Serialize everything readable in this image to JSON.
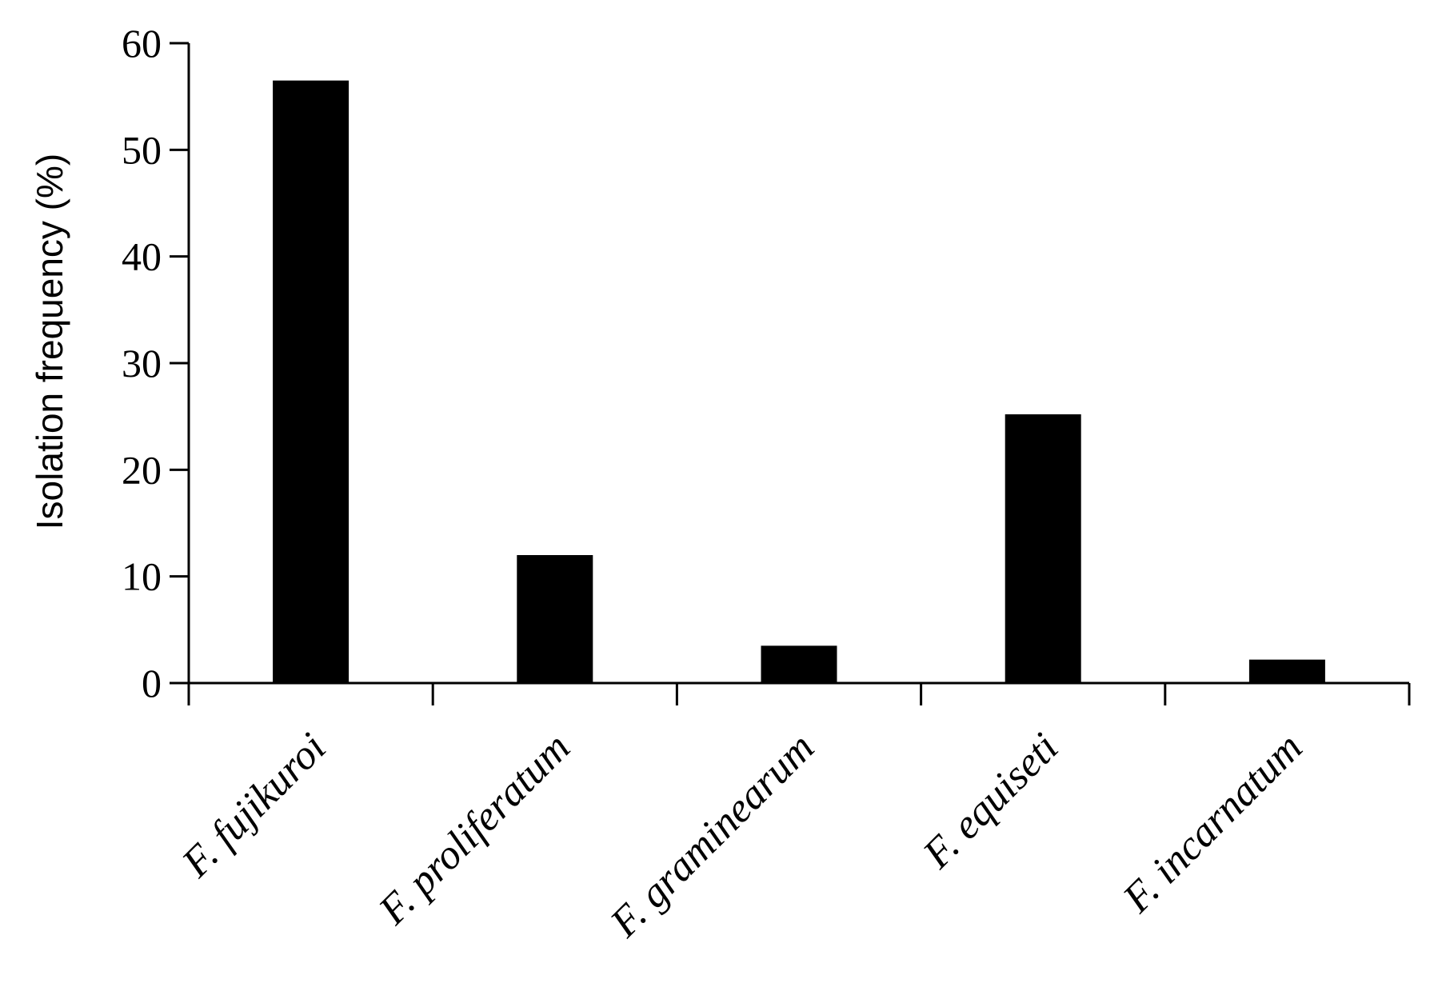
{
  "chart_data": {
    "type": "bar",
    "categories": [
      "F. fujikuroi",
      "F. proliferatum",
      "F. graminearum",
      "F. equiseti",
      "F. incarnatum"
    ],
    "values": [
      56.5,
      12.0,
      3.5,
      25.2,
      2.2
    ],
    "title": "",
    "xlabel": "",
    "ylabel": "Isolation frequency (%)",
    "ylim": [
      0,
      60
    ],
    "yticks": [
      0,
      10,
      20,
      30,
      40,
      50,
      60
    ],
    "ytick_labels": [
      "0",
      "10",
      "20",
      "30",
      "40",
      "50",
      "60"
    ],
    "bar_color": "#000000",
    "grid": false,
    "legend": "none"
  }
}
